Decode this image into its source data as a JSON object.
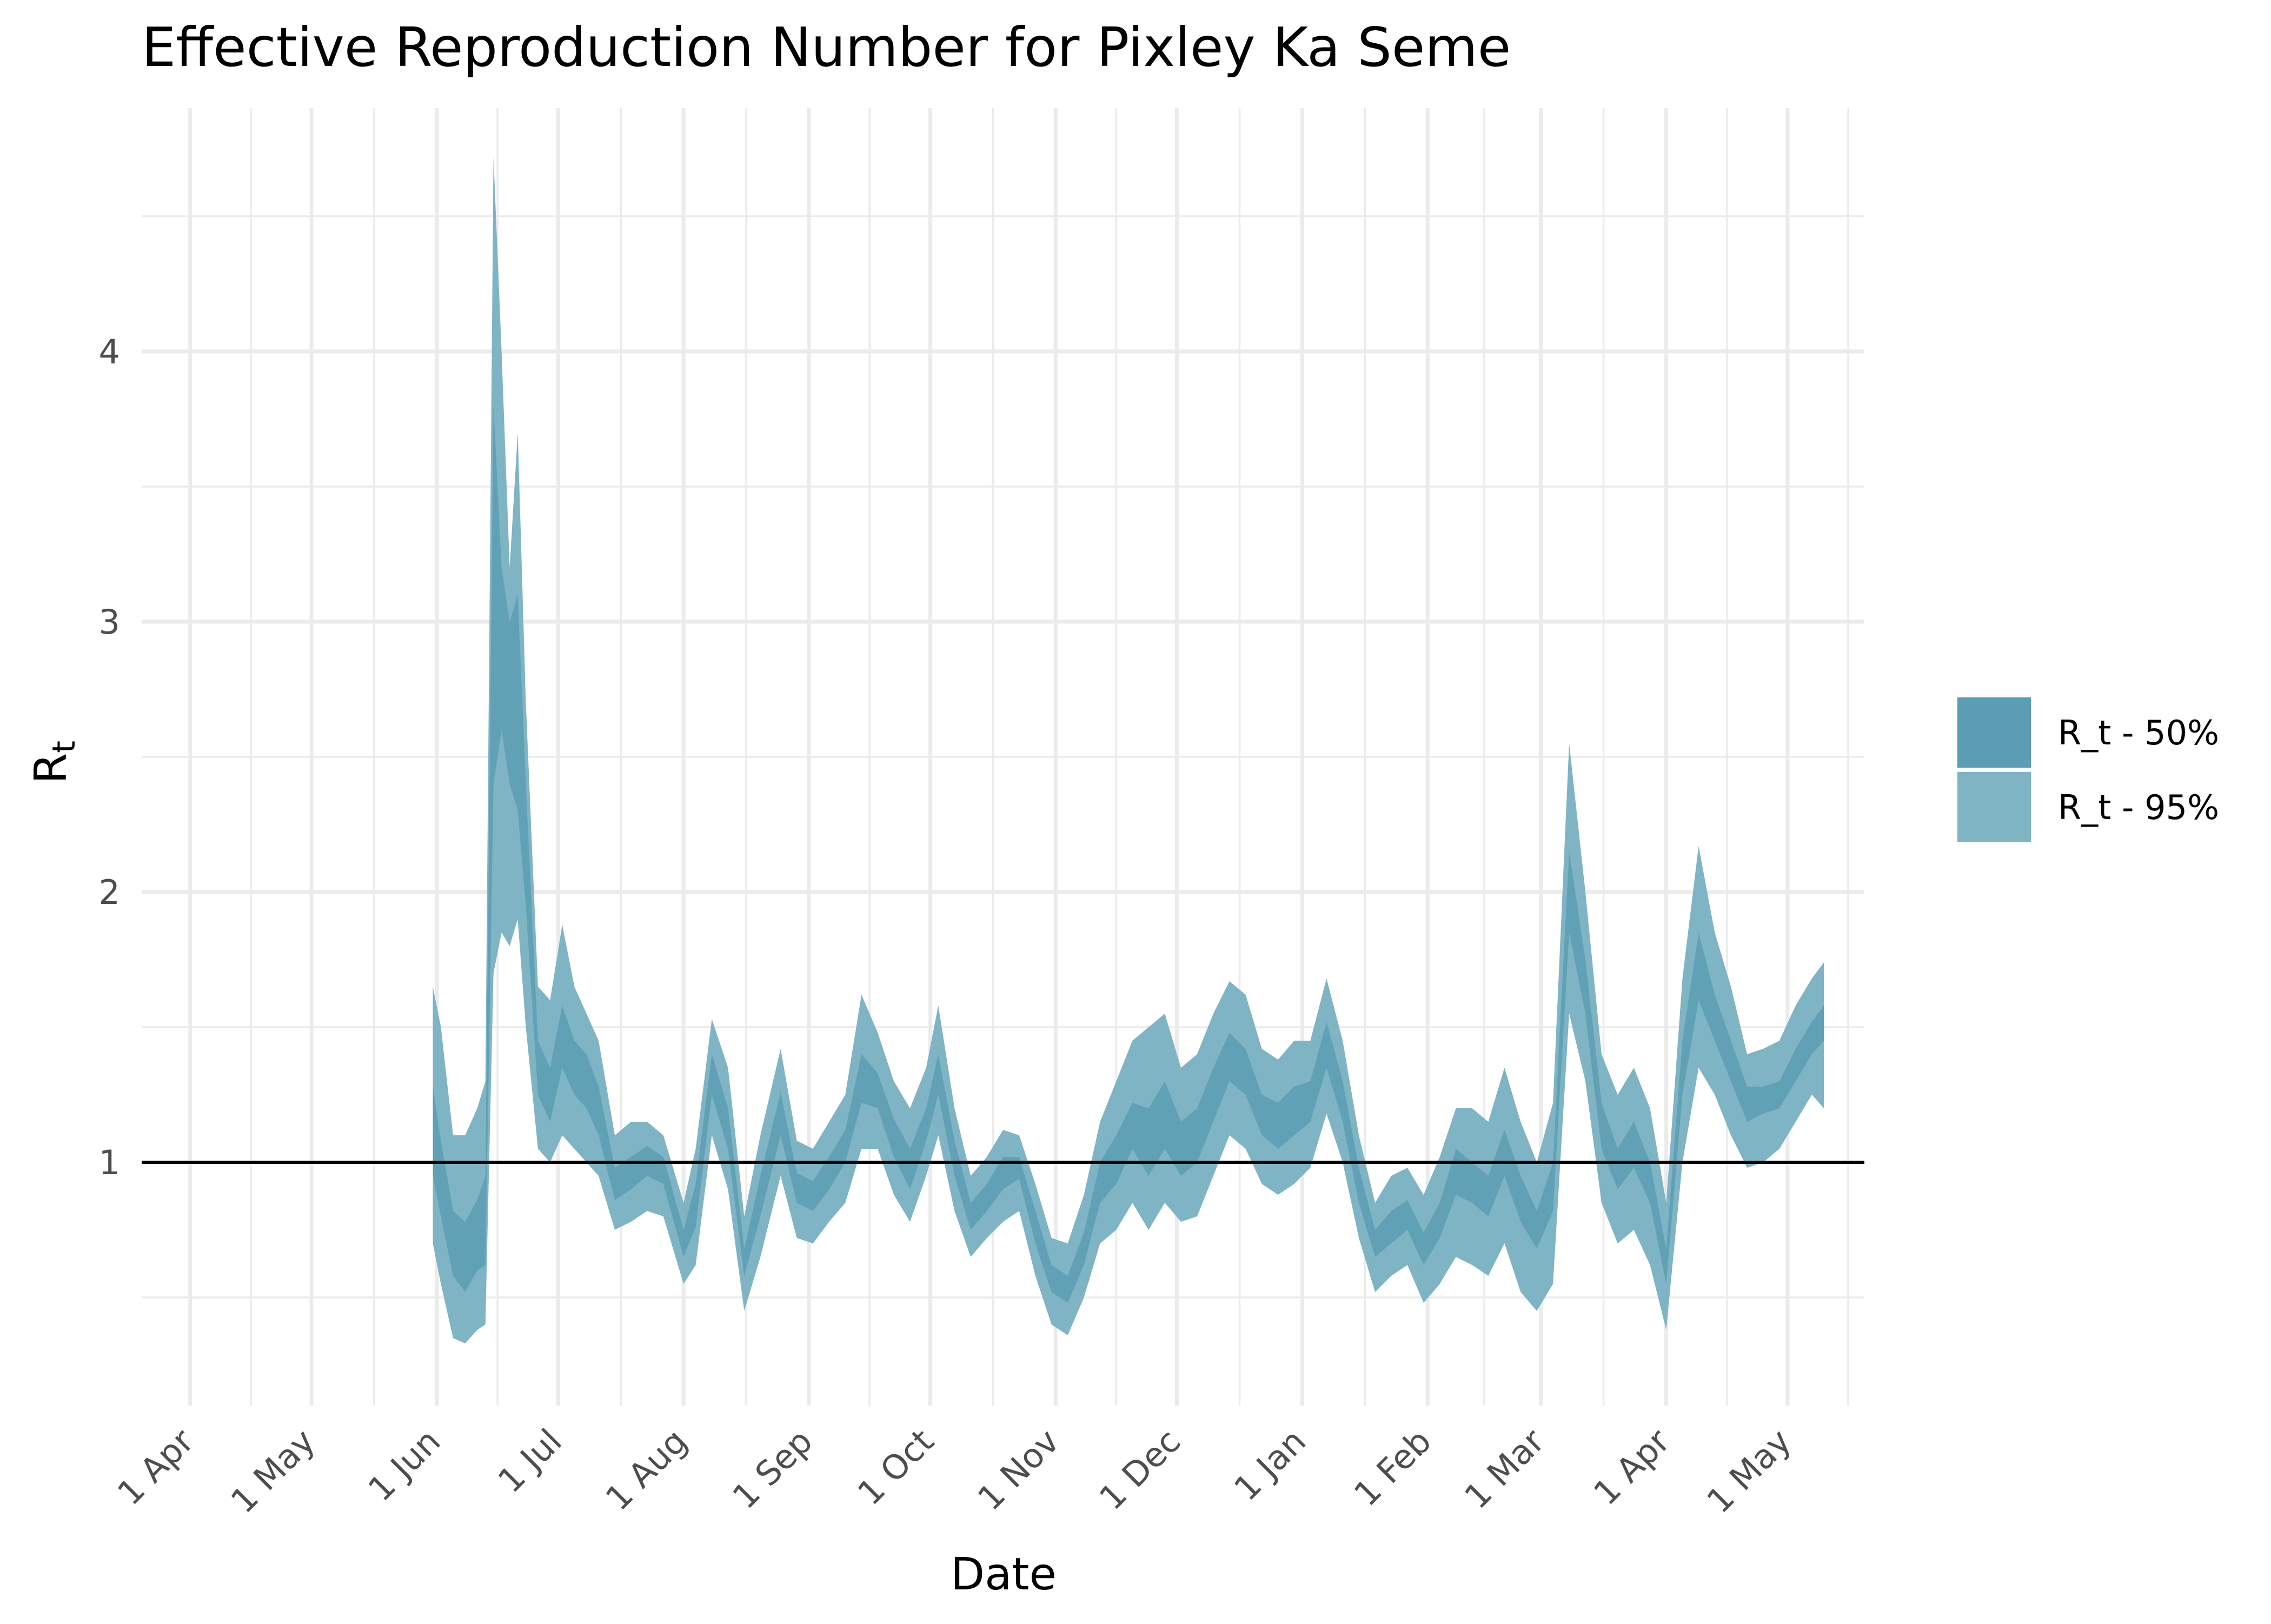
{
  "chart_data": {
    "type": "area",
    "title": "Effective Reproduction Number for Pixley Ka Seme",
    "xlabel": "Date",
    "ylabel_main": "R",
    "ylabel_sub": "t",
    "x_range": [
      "2020-03-20",
      "2021-05-20"
    ],
    "ylim": [
      0.1,
      4.9
    ],
    "y_ticks": [
      1,
      2,
      3,
      4
    ],
    "y_tick_labels": [
      "1",
      "2",
      "3",
      "4"
    ],
    "x_ticks": [
      "2020-04-01",
      "2020-05-01",
      "2020-06-01",
      "2020-07-01",
      "2020-08-01",
      "2020-09-01",
      "2020-10-01",
      "2020-11-01",
      "2020-12-01",
      "2021-01-01",
      "2021-02-01",
      "2021-03-01",
      "2021-04-01",
      "2021-05-01"
    ],
    "x_tick_labels": [
      "1 Apr",
      "1 May",
      "1 Jun",
      "1 Jul",
      "1 Aug",
      "1 Sep",
      "1 Oct",
      "1 Nov",
      "1 Dec",
      "1 Jan",
      "1 Feb",
      "1 Mar",
      "1 Apr",
      "1 May"
    ],
    "reference_line": 1,
    "grid": true,
    "legend_position": "right",
    "colors": {
      "band50": "#5b9db3",
      "band95": "#7fb4c5",
      "reference": "#000000",
      "grid": "#ebebeb"
    },
    "series": [
      {
        "name": "R_t - 50%",
        "points": [
          [
            "2020-05-31",
            0.95,
            1.28
          ],
          [
            "2020-06-02",
            0.8,
            1.08
          ],
          [
            "2020-06-05",
            0.58,
            0.82
          ],
          [
            "2020-06-08",
            0.52,
            0.78
          ],
          [
            "2020-06-11",
            0.6,
            0.86
          ],
          [
            "2020-06-13",
            0.62,
            0.95
          ],
          [
            "2020-06-15",
            2.4,
            3.8
          ],
          [
            "2020-06-17",
            2.6,
            3.2
          ],
          [
            "2020-06-19",
            2.4,
            3.0
          ],
          [
            "2020-06-21",
            2.3,
            3.1
          ],
          [
            "2020-06-23",
            1.95,
            2.4
          ],
          [
            "2020-06-26",
            1.25,
            1.45
          ],
          [
            "2020-06-29",
            1.15,
            1.35
          ],
          [
            "2020-07-02",
            1.35,
            1.58
          ],
          [
            "2020-07-05",
            1.25,
            1.45
          ],
          [
            "2020-07-08",
            1.2,
            1.4
          ],
          [
            "2020-07-11",
            1.1,
            1.28
          ],
          [
            "2020-07-15",
            0.86,
            0.98
          ],
          [
            "2020-07-19",
            0.9,
            1.02
          ],
          [
            "2020-07-23",
            0.95,
            1.06
          ],
          [
            "2020-07-27",
            0.92,
            1.02
          ],
          [
            "2020-08-01",
            0.65,
            0.75
          ],
          [
            "2020-08-04",
            0.76,
            0.92
          ],
          [
            "2020-08-08",
            1.25,
            1.4
          ],
          [
            "2020-08-12",
            1.05,
            1.2
          ],
          [
            "2020-08-16",
            0.58,
            0.68
          ],
          [
            "2020-08-20",
            0.8,
            0.95
          ],
          [
            "2020-08-25",
            1.1,
            1.26
          ],
          [
            "2020-08-29",
            0.85,
            0.96
          ],
          [
            "2020-09-02",
            0.82,
            0.93
          ],
          [
            "2020-09-06",
            0.9,
            1.02
          ],
          [
            "2020-09-10",
            1.0,
            1.12
          ],
          [
            "2020-09-14",
            1.22,
            1.4
          ],
          [
            "2020-09-18",
            1.2,
            1.33
          ],
          [
            "2020-09-22",
            1.02,
            1.16
          ],
          [
            "2020-09-26",
            0.9,
            1.05
          ],
          [
            "2020-09-30",
            1.08,
            1.2
          ],
          [
            "2020-10-03",
            1.25,
            1.4
          ],
          [
            "2020-10-07",
            0.95,
            1.08
          ],
          [
            "2020-10-11",
            0.75,
            0.85
          ],
          [
            "2020-10-15",
            0.82,
            0.92
          ],
          [
            "2020-10-19",
            0.9,
            1.02
          ],
          [
            "2020-10-23",
            0.94,
            1.02
          ],
          [
            "2020-10-27",
            0.7,
            0.82
          ],
          [
            "2020-10-31",
            0.52,
            0.62
          ],
          [
            "2020-11-04",
            0.48,
            0.58
          ],
          [
            "2020-11-08",
            0.62,
            0.74
          ],
          [
            "2020-11-12",
            0.85,
            1.0
          ],
          [
            "2020-11-16",
            0.92,
            1.1
          ],
          [
            "2020-11-20",
            1.05,
            1.22
          ],
          [
            "2020-11-24",
            0.95,
            1.2
          ],
          [
            "2020-11-28",
            1.05,
            1.3
          ],
          [
            "2020-12-02",
            0.95,
            1.15
          ],
          [
            "2020-12-06",
            1.0,
            1.2
          ],
          [
            "2020-12-10",
            1.15,
            1.35
          ],
          [
            "2020-12-14",
            1.3,
            1.48
          ],
          [
            "2020-12-18",
            1.25,
            1.42
          ],
          [
            "2020-12-22",
            1.1,
            1.25
          ],
          [
            "2020-12-26",
            1.05,
            1.22
          ],
          [
            "2020-12-30",
            1.1,
            1.28
          ],
          [
            "2021-01-03",
            1.15,
            1.3
          ],
          [
            "2021-01-07",
            1.35,
            1.52
          ],
          [
            "2021-01-11",
            1.15,
            1.3
          ],
          [
            "2021-01-15",
            0.85,
            0.98
          ],
          [
            "2021-01-19",
            0.65,
            0.75
          ],
          [
            "2021-01-23",
            0.7,
            0.82
          ],
          [
            "2021-01-27",
            0.75,
            0.86
          ],
          [
            "2021-01-31",
            0.62,
            0.74
          ],
          [
            "2021-02-04",
            0.72,
            0.85
          ],
          [
            "2021-02-08",
            0.88,
            1.05
          ],
          [
            "2021-02-12",
            0.85,
            1.0
          ],
          [
            "2021-02-16",
            0.8,
            0.95
          ],
          [
            "2021-02-20",
            0.95,
            1.12
          ],
          [
            "2021-02-24",
            0.78,
            0.95
          ],
          [
            "2021-02-28",
            0.68,
            0.82
          ],
          [
            "2021-03-04",
            0.82,
            1.0
          ],
          [
            "2021-03-08",
            1.85,
            2.15
          ],
          [
            "2021-03-12",
            1.55,
            1.75
          ],
          [
            "2021-03-16",
            1.05,
            1.22
          ],
          [
            "2021-03-20",
            0.9,
            1.05
          ],
          [
            "2021-03-24",
            0.98,
            1.15
          ],
          [
            "2021-03-28",
            0.85,
            1.0
          ],
          [
            "2021-04-01",
            0.55,
            0.68
          ],
          [
            "2021-04-05",
            1.25,
            1.45
          ],
          [
            "2021-04-09",
            1.6,
            1.85
          ],
          [
            "2021-04-13",
            1.45,
            1.62
          ],
          [
            "2021-04-17",
            1.3,
            1.45
          ],
          [
            "2021-04-21",
            1.15,
            1.28
          ],
          [
            "2021-04-25",
            1.18,
            1.28
          ],
          [
            "2021-04-29",
            1.2,
            1.3
          ],
          [
            "2021-05-03",
            1.3,
            1.42
          ],
          [
            "2021-05-07",
            1.4,
            1.52
          ],
          [
            "2021-05-10",
            1.45,
            1.58
          ]
        ]
      },
      {
        "name": "R_t - 95%",
        "points": [
          [
            "2020-05-31",
            0.7,
            1.65
          ],
          [
            "2020-06-02",
            0.55,
            1.5
          ],
          [
            "2020-06-05",
            0.35,
            1.1
          ],
          [
            "2020-06-08",
            0.33,
            1.1
          ],
          [
            "2020-06-11",
            0.38,
            1.2
          ],
          [
            "2020-06-13",
            0.4,
            1.3
          ],
          [
            "2020-06-15",
            1.7,
            4.72
          ],
          [
            "2020-06-17",
            1.85,
            4.0
          ],
          [
            "2020-06-19",
            1.8,
            3.2
          ],
          [
            "2020-06-21",
            1.9,
            3.7
          ],
          [
            "2020-06-23",
            1.5,
            2.7
          ],
          [
            "2020-06-26",
            1.05,
            1.65
          ],
          [
            "2020-06-29",
            1.0,
            1.6
          ],
          [
            "2020-07-02",
            1.1,
            1.88
          ],
          [
            "2020-07-05",
            1.05,
            1.65
          ],
          [
            "2020-07-08",
            1.0,
            1.55
          ],
          [
            "2020-07-11",
            0.95,
            1.45
          ],
          [
            "2020-07-15",
            0.75,
            1.1
          ],
          [
            "2020-07-19",
            0.78,
            1.15
          ],
          [
            "2020-07-23",
            0.82,
            1.15
          ],
          [
            "2020-07-27",
            0.8,
            1.1
          ],
          [
            "2020-08-01",
            0.55,
            0.85
          ],
          [
            "2020-08-04",
            0.62,
            1.05
          ],
          [
            "2020-08-08",
            1.1,
            1.53
          ],
          [
            "2020-08-12",
            0.9,
            1.35
          ],
          [
            "2020-08-16",
            0.45,
            0.8
          ],
          [
            "2020-08-20",
            0.65,
            1.1
          ],
          [
            "2020-08-25",
            0.95,
            1.42
          ],
          [
            "2020-08-29",
            0.72,
            1.08
          ],
          [
            "2020-09-02",
            0.7,
            1.05
          ],
          [
            "2020-09-06",
            0.78,
            1.15
          ],
          [
            "2020-09-10",
            0.85,
            1.25
          ],
          [
            "2020-09-14",
            1.05,
            1.62
          ],
          [
            "2020-09-18",
            1.05,
            1.48
          ],
          [
            "2020-09-22",
            0.88,
            1.3
          ],
          [
            "2020-09-26",
            0.78,
            1.2
          ],
          [
            "2020-09-30",
            0.95,
            1.35
          ],
          [
            "2020-10-03",
            1.1,
            1.58
          ],
          [
            "2020-10-07",
            0.82,
            1.2
          ],
          [
            "2020-10-11",
            0.65,
            0.95
          ],
          [
            "2020-10-15",
            0.72,
            1.02
          ],
          [
            "2020-10-19",
            0.78,
            1.12
          ],
          [
            "2020-10-23",
            0.82,
            1.1
          ],
          [
            "2020-10-27",
            0.58,
            0.92
          ],
          [
            "2020-10-31",
            0.4,
            0.72
          ],
          [
            "2020-11-04",
            0.36,
            0.7
          ],
          [
            "2020-11-08",
            0.5,
            0.88
          ],
          [
            "2020-11-12",
            0.7,
            1.15
          ],
          [
            "2020-11-16",
            0.75,
            1.3
          ],
          [
            "2020-11-20",
            0.85,
            1.45
          ],
          [
            "2020-11-24",
            0.75,
            1.5
          ],
          [
            "2020-11-28",
            0.85,
            1.55
          ],
          [
            "2020-12-02",
            0.78,
            1.35
          ],
          [
            "2020-12-06",
            0.8,
            1.4
          ],
          [
            "2020-12-10",
            0.95,
            1.55
          ],
          [
            "2020-12-14",
            1.1,
            1.67
          ],
          [
            "2020-12-18",
            1.05,
            1.62
          ],
          [
            "2020-12-22",
            0.92,
            1.42
          ],
          [
            "2020-12-26",
            0.88,
            1.38
          ],
          [
            "2020-12-30",
            0.92,
            1.45
          ],
          [
            "2021-01-03",
            0.98,
            1.45
          ],
          [
            "2021-01-07",
            1.18,
            1.68
          ],
          [
            "2021-01-11",
            1.0,
            1.45
          ],
          [
            "2021-01-15",
            0.72,
            1.1
          ],
          [
            "2021-01-19",
            0.52,
            0.85
          ],
          [
            "2021-01-23",
            0.58,
            0.95
          ],
          [
            "2021-01-27",
            0.62,
            0.98
          ],
          [
            "2021-01-31",
            0.48,
            0.88
          ],
          [
            "2021-02-04",
            0.55,
            1.02
          ],
          [
            "2021-02-08",
            0.65,
            1.2
          ],
          [
            "2021-02-12",
            0.62,
            1.2
          ],
          [
            "2021-02-16",
            0.58,
            1.15
          ],
          [
            "2021-02-20",
            0.7,
            1.35
          ],
          [
            "2021-02-24",
            0.52,
            1.15
          ],
          [
            "2021-02-28",
            0.45,
            1.0
          ],
          [
            "2021-03-04",
            0.55,
            1.22
          ],
          [
            "2021-03-08",
            1.55,
            2.55
          ],
          [
            "2021-03-12",
            1.3,
            2.0
          ],
          [
            "2021-03-16",
            0.85,
            1.4
          ],
          [
            "2021-03-20",
            0.7,
            1.25
          ],
          [
            "2021-03-24",
            0.75,
            1.35
          ],
          [
            "2021-03-28",
            0.62,
            1.2
          ],
          [
            "2021-04-01",
            0.38,
            0.85
          ],
          [
            "2021-04-05",
            1.0,
            1.68
          ],
          [
            "2021-04-09",
            1.35,
            2.17
          ],
          [
            "2021-04-13",
            1.25,
            1.85
          ],
          [
            "2021-04-17",
            1.1,
            1.65
          ],
          [
            "2021-04-21",
            0.98,
            1.4
          ],
          [
            "2021-04-25",
            1.0,
            1.42
          ],
          [
            "2021-04-29",
            1.05,
            1.45
          ],
          [
            "2021-05-03",
            1.15,
            1.58
          ],
          [
            "2021-05-07",
            1.25,
            1.68
          ],
          [
            "2021-05-10",
            1.2,
            1.74
          ]
        ]
      }
    ]
  }
}
